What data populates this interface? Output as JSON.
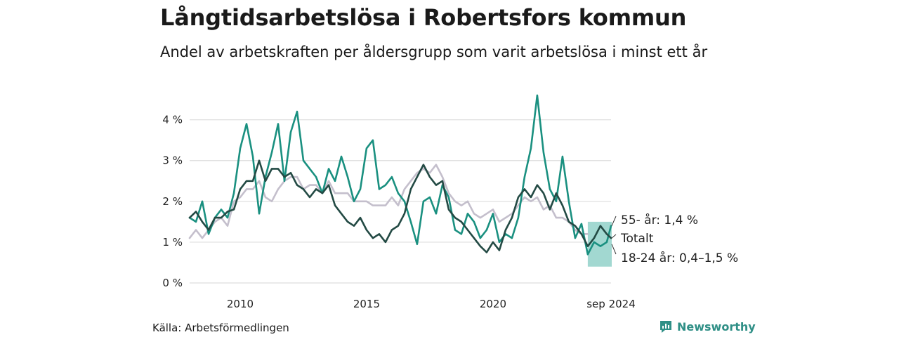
{
  "header": {
    "title": "Långtidsarbetslösa i Robertsfors kommun",
    "subtitle": "Andel av arbetskraften per åldersgrupp som varit arbetslösa i minst ett år"
  },
  "footer": {
    "source": "Källa: Arbetsförmedlingen",
    "brand": "Newsworthy",
    "brand_icon": "newsworthy-logo-icon"
  },
  "colors": {
    "age_55": "#1a9080",
    "total": "#234a44",
    "age_18_24": "#c4bfcc",
    "band": "#9dd6cf",
    "grid": "#dddddd"
  },
  "chart_data": {
    "type": "line",
    "title": "Långtidsarbetslösa i Robertsfors kommun",
    "subtitle": "Andel av arbetskraften per åldersgrupp som varit arbetslösa i minst ett år",
    "y_unit": "%",
    "ylim": [
      0,
      4.7
    ],
    "y_ticks": [
      0,
      1,
      2,
      3,
      4
    ],
    "y_tick_labels": [
      "0 %",
      "1 %",
      "2 %",
      "3 %",
      "4 %"
    ],
    "x_range": [
      "2008-01",
      "2024-09"
    ],
    "x_ticks": [
      2010,
      2015,
      2020
    ],
    "x_tick_labels": [
      "2010",
      "2015",
      "2020"
    ],
    "last_label": "sep 2024",
    "grid": true,
    "series": [
      {
        "name": "55- år",
        "end_label": "55- år: 1,4 %",
        "x": [
          2008.0,
          2008.25,
          2008.5,
          2008.75,
          2009.0,
          2009.25,
          2009.5,
          2009.75,
          2010.0,
          2010.25,
          2010.5,
          2010.75,
          2011.0,
          2011.25,
          2011.5,
          2011.75,
          2012.0,
          2012.25,
          2012.5,
          2012.75,
          2013.0,
          2013.25,
          2013.5,
          2013.75,
          2014.0,
          2014.25,
          2014.5,
          2014.75,
          2015.0,
          2015.25,
          2015.5,
          2015.75,
          2016.0,
          2016.25,
          2016.5,
          2016.75,
          2017.0,
          2017.25,
          2017.5,
          2017.75,
          2018.0,
          2018.25,
          2018.5,
          2018.75,
          2019.0,
          2019.25,
          2019.5,
          2019.75,
          2020.0,
          2020.25,
          2020.5,
          2020.75,
          2021.0,
          2021.25,
          2021.5,
          2021.75,
          2022.0,
          2022.25,
          2022.5,
          2022.75,
          2023.0,
          2023.25,
          2023.5,
          2023.75,
          2024.0,
          2024.25,
          2024.5,
          2024.67
        ],
        "values": [
          1.6,
          1.5,
          2.0,
          1.2,
          1.6,
          1.8,
          1.6,
          2.2,
          3.3,
          3.9,
          3.1,
          1.7,
          2.6,
          3.2,
          3.9,
          2.5,
          3.7,
          4.2,
          3.0,
          2.8,
          2.6,
          2.2,
          2.8,
          2.5,
          3.1,
          2.6,
          2.0,
          2.3,
          3.3,
          3.5,
          2.3,
          2.4,
          2.6,
          2.2,
          2.0,
          1.5,
          0.95,
          2.0,
          2.1,
          1.7,
          2.4,
          2.1,
          1.3,
          1.2,
          1.7,
          1.5,
          1.1,
          1.3,
          1.7,
          1.0,
          1.2,
          1.1,
          1.6,
          2.6,
          3.3,
          4.6,
          3.2,
          2.3,
          2.0,
          3.1,
          2.0,
          1.1,
          1.45,
          0.7,
          1.0,
          0.9,
          1.0,
          1.4
        ]
      },
      {
        "name": "Totalt",
        "end_label": "Totalt",
        "x": [
          2008.0,
          2008.25,
          2008.5,
          2008.75,
          2009.0,
          2009.25,
          2009.5,
          2009.75,
          2010.0,
          2010.25,
          2010.5,
          2010.75,
          2011.0,
          2011.25,
          2011.5,
          2011.75,
          2012.0,
          2012.25,
          2012.5,
          2012.75,
          2013.0,
          2013.25,
          2013.5,
          2013.75,
          2014.0,
          2014.25,
          2014.5,
          2014.75,
          2015.0,
          2015.25,
          2015.5,
          2015.75,
          2016.0,
          2016.25,
          2016.5,
          2016.75,
          2017.0,
          2017.25,
          2017.5,
          2017.75,
          2018.0,
          2018.25,
          2018.5,
          2018.75,
          2019.0,
          2019.25,
          2019.5,
          2019.75,
          2020.0,
          2020.25,
          2020.5,
          2020.75,
          2021.0,
          2021.25,
          2021.5,
          2021.75,
          2022.0,
          2022.25,
          2022.5,
          2022.75,
          2023.0,
          2023.25,
          2023.5,
          2023.75,
          2024.0,
          2024.25,
          2024.5,
          2024.67
        ],
        "values": [
          1.6,
          1.75,
          1.5,
          1.3,
          1.6,
          1.6,
          1.75,
          1.8,
          2.3,
          2.5,
          2.5,
          3.0,
          2.5,
          2.8,
          2.8,
          2.6,
          2.7,
          2.4,
          2.3,
          2.1,
          2.3,
          2.2,
          2.4,
          1.9,
          1.7,
          1.5,
          1.4,
          1.6,
          1.3,
          1.1,
          1.2,
          1.0,
          1.3,
          1.4,
          1.7,
          2.3,
          2.6,
          2.9,
          2.6,
          2.4,
          2.5,
          1.8,
          1.6,
          1.5,
          1.3,
          1.1,
          0.9,
          0.75,
          1.0,
          0.8,
          1.3,
          1.6,
          2.1,
          2.3,
          2.1,
          2.4,
          2.2,
          1.8,
          2.2,
          1.9,
          1.5,
          1.4,
          1.2,
          0.9,
          1.1,
          1.4,
          1.2,
          1.1
        ]
      },
      {
        "name": "18-24 år",
        "end_label": "18-24 år: 0,4–1,5 %",
        "x": [
          2008.0,
          2008.25,
          2008.5,
          2008.75,
          2009.0,
          2009.25,
          2009.5,
          2009.75,
          2010.0,
          2010.25,
          2010.5,
          2010.75,
          2011.0,
          2011.25,
          2011.5,
          2011.75,
          2012.0,
          2012.25,
          2012.5,
          2012.75,
          2013.0,
          2013.25,
          2013.5,
          2013.75,
          2014.0,
          2014.25,
          2014.5,
          2014.75,
          2015.0,
          2015.25,
          2015.5,
          2015.75,
          2016.0,
          2016.25,
          2016.5,
          2016.75,
          2017.0,
          2017.25,
          2017.5,
          2017.75,
          2018.0,
          2018.25,
          2018.5,
          2018.75,
          2019.0,
          2019.25,
          2019.5,
          2019.75,
          2020.0,
          2020.25,
          2020.5,
          2020.75,
          2021.0,
          2021.25,
          2021.5,
          2021.75,
          2022.0,
          2022.25,
          2022.5,
          2022.75,
          2023.0,
          2023.25,
          2023.5,
          2023.75
        ],
        "values": [
          1.1,
          1.3,
          1.1,
          1.3,
          1.5,
          1.6,
          1.4,
          2.0,
          2.1,
          2.3,
          2.3,
          2.5,
          2.1,
          2.0,
          2.3,
          2.5,
          2.6,
          2.6,
          2.3,
          2.4,
          2.4,
          2.2,
          2.5,
          2.2,
          2.2,
          2.2,
          2.0,
          2.0,
          2.0,
          1.9,
          1.9,
          1.9,
          2.1,
          1.9,
          2.3,
          2.5,
          2.7,
          2.8,
          2.7,
          2.9,
          2.6,
          2.2,
          2.0,
          1.9,
          2.0,
          1.7,
          1.6,
          1.7,
          1.8,
          1.5,
          1.6,
          1.7,
          1.9,
          2.1,
          2.0,
          2.1,
          1.8,
          1.9,
          1.6,
          1.6,
          1.5,
          1.3,
          1.2,
          1.2
        ]
      }
    ],
    "range_band": {
      "series": "18-24 år",
      "x": [
        2023.75,
        2024.67
      ],
      "low": 0.4,
      "high": 1.5
    }
  }
}
